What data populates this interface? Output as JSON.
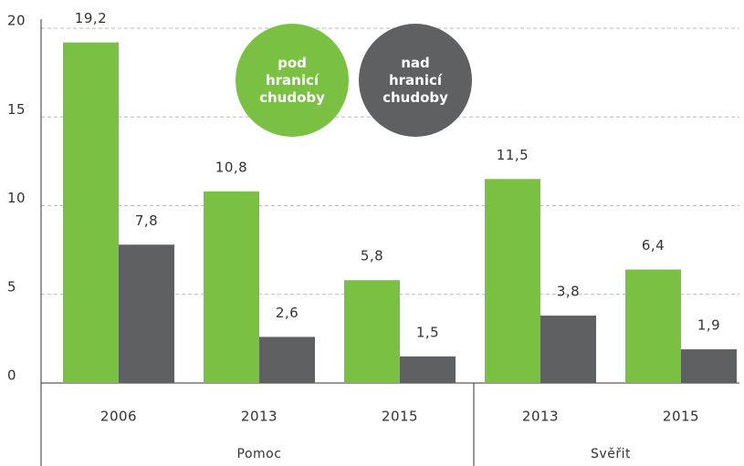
{
  "chart_data": {
    "type": "bar",
    "groups": [
      {
        "name": "Pomoc",
        "categories": [
          "2006",
          "2013",
          "2015"
        ]
      },
      {
        "name": "Svěřit",
        "categories": [
          "2013",
          "2015"
        ]
      }
    ],
    "series": [
      {
        "name": "pod hranicí chudoby",
        "color": "#7ac043",
        "values": [
          19.2,
          10.8,
          5.8,
          11.5,
          6.4
        ],
        "value_labels": [
          "19,2",
          "10,8",
          "5,8",
          "11,5",
          "6,4"
        ]
      },
      {
        "name": "nad hranicí chudoby",
        "color": "#5f6062",
        "values": [
          7.8,
          2.6,
          1.5,
          3.8,
          1.9
        ],
        "value_labels": [
          "7,8",
          "2,6",
          "1,5",
          "3,8",
          "1,9"
        ]
      }
    ],
    "ylim": [
      0,
      20
    ],
    "yticks": [
      0,
      5,
      10,
      15,
      20
    ],
    "grid": true
  }
}
